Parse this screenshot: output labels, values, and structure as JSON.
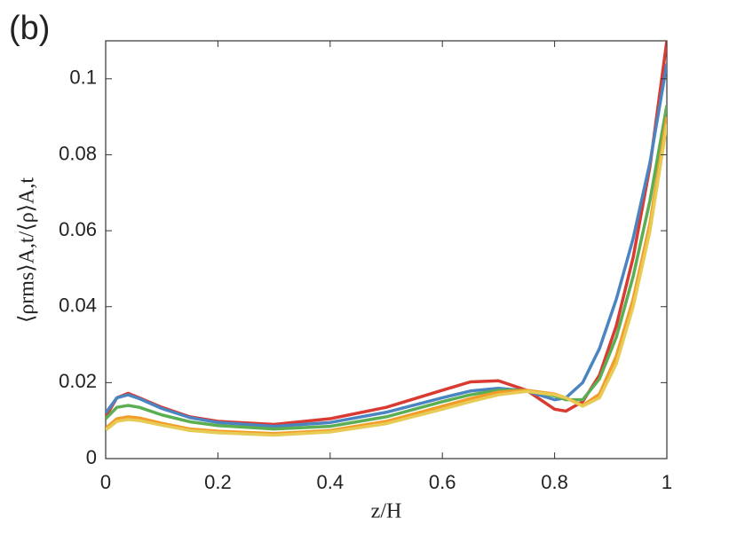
{
  "chart_data": {
    "type": "line",
    "panel_label": "(b)",
    "x_label": "z/H",
    "y_label": "⟨ρrms⟩A,t/⟨ρ⟩A,t",
    "x": [
      0,
      0.02,
      0.04,
      0.06,
      0.1,
      0.15,
      0.2,
      0.3,
      0.4,
      0.5,
      0.6,
      0.65,
      0.7,
      0.75,
      0.8,
      0.82,
      0.85,
      0.88,
      0.91,
      0.94,
      0.97,
      1
    ],
    "series": [
      {
        "color": "#d93a32",
        "values": [
          0.011,
          0.016,
          0.0172,
          0.016,
          0.0135,
          0.011,
          0.0098,
          0.009,
          0.0105,
          0.0135,
          0.018,
          0.0202,
          0.0205,
          0.018,
          0.013,
          0.0125,
          0.015,
          0.022,
          0.035,
          0.053,
          0.077,
          0.11
        ]
      },
      {
        "color": "#4a85c2",
        "values": [
          0.012,
          0.016,
          0.0168,
          0.0158,
          0.0132,
          0.0108,
          0.0095,
          0.0085,
          0.0095,
          0.0122,
          0.016,
          0.0178,
          0.0185,
          0.0178,
          0.0155,
          0.016,
          0.02,
          0.029,
          0.042,
          0.058,
          0.078,
          0.104
        ]
      },
      {
        "color": "#5cae52",
        "values": [
          0.0105,
          0.0135,
          0.014,
          0.0135,
          0.0115,
          0.0097,
          0.0087,
          0.0078,
          0.0085,
          0.011,
          0.015,
          0.0168,
          0.018,
          0.018,
          0.0165,
          0.0155,
          0.0155,
          0.021,
          0.032,
          0.048,
          0.068,
          0.093
        ]
      },
      {
        "color": "#f29d2a",
        "values": [
          0.008,
          0.0105,
          0.011,
          0.0107,
          0.0093,
          0.0078,
          0.0072,
          0.0066,
          0.0074,
          0.0098,
          0.0138,
          0.0158,
          0.0175,
          0.018,
          0.017,
          0.016,
          0.014,
          0.017,
          0.027,
          0.042,
          0.062,
          0.09
        ]
      },
      {
        "color": "#e8cb55",
        "values": [
          0.0075,
          0.0098,
          0.0103,
          0.01,
          0.0088,
          0.0074,
          0.0068,
          0.0062,
          0.007,
          0.0092,
          0.013,
          0.015,
          0.0168,
          0.0177,
          0.0168,
          0.016,
          0.0138,
          0.016,
          0.025,
          0.04,
          0.06,
          0.088
        ]
      }
    ],
    "xlim": [
      0,
      1
    ],
    "xticks": [
      0,
      0.2,
      0.4,
      0.6,
      0.8,
      1
    ],
    "ylim": [
      0,
      0.11
    ],
    "yticks": [
      0,
      0.02,
      0.04,
      0.06,
      0.08,
      0.1
    ]
  }
}
